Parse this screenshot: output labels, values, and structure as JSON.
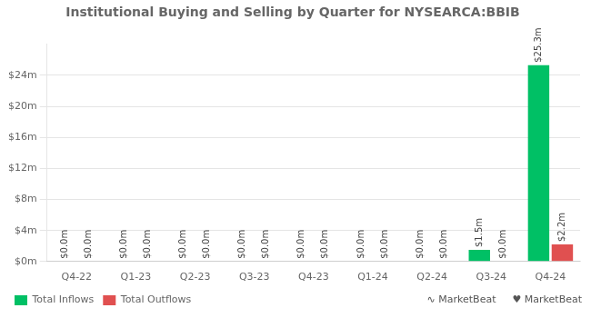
{
  "chart_data": {
    "type": "bar",
    "title": "Institutional Buying and Selling by Quarter for NYSEARCA:BBIB",
    "categories": [
      "Q4-22",
      "Q1-23",
      "Q2-23",
      "Q3-23",
      "Q4-23",
      "Q1-24",
      "Q2-24",
      "Q3-24",
      "Q4-24"
    ],
    "series": [
      {
        "name": "Total Inflows",
        "color": "#00c065",
        "values": [
          0.0,
          0.0,
          0.0,
          0.0,
          0.0,
          0.0,
          0.0,
          1.5,
          25.3
        ],
        "value_labels": [
          "$0.0m",
          "$0.0m",
          "$0.0m",
          "$0.0m",
          "$0.0m",
          "$0.0m",
          "$0.0m",
          "$1.5m",
          "$25.3m"
        ]
      },
      {
        "name": "Total Outflows",
        "color": "#e05050",
        "values": [
          0.0,
          0.0,
          0.0,
          0.0,
          0.0,
          0.0,
          0.0,
          0.0,
          2.2
        ],
        "value_labels": [
          "$0.0m",
          "$0.0m",
          "$0.0m",
          "$0.0m",
          "$0.0m",
          "$0.0m",
          "$0.0m",
          "$0.0m",
          "$2.2m"
        ]
      }
    ],
    "ylim": [
      0,
      28
    ],
    "yticks": [
      {
        "value": 0,
        "label": "$0m"
      },
      {
        "value": 4,
        "label": "$4m"
      },
      {
        "value": 8,
        "label": "$8m"
      },
      {
        "value": 12,
        "label": "$12m"
      },
      {
        "value": 16,
        "label": "$16m"
      },
      {
        "value": 20,
        "label": "$20m"
      },
      {
        "value": 24,
        "label": "$24m"
      }
    ],
    "grid": true,
    "legend": "bottom",
    "data_labels": true,
    "annotations": [
      "∿ MarketBeat",
      "♥ MarketBeat"
    ]
  }
}
